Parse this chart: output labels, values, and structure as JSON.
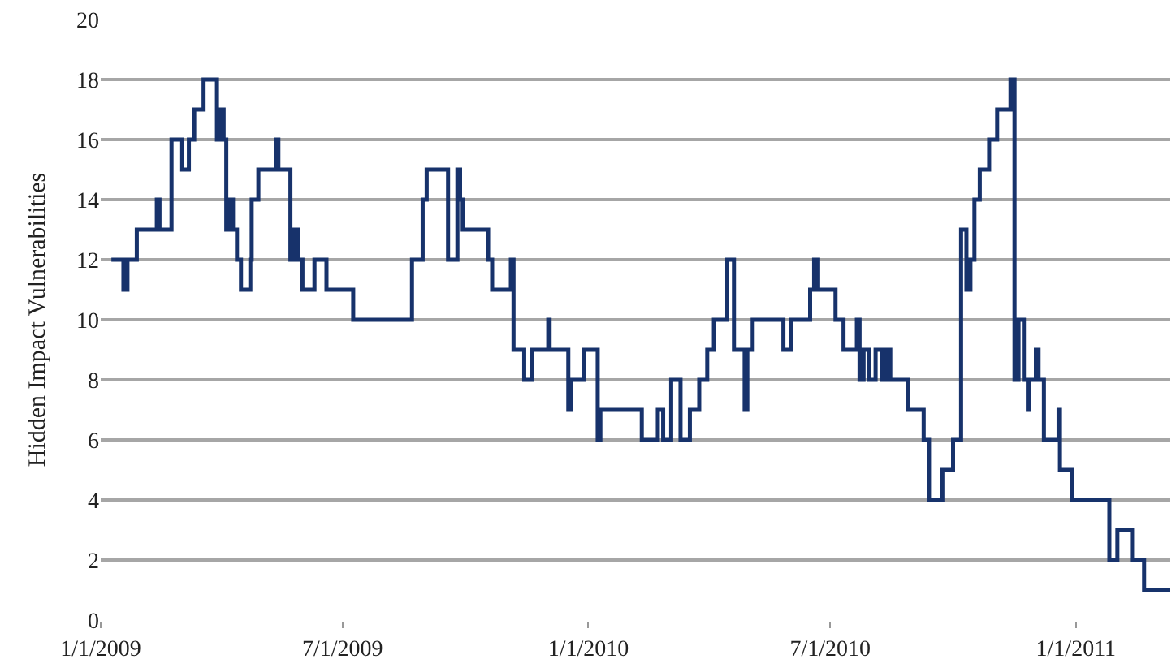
{
  "chart_data": {
    "type": "step",
    "ylabel": "Hidden Impact Vulnerabilities",
    "x": [
      "2009-01-09",
      "2009-01-18",
      "2009-01-21",
      "2009-01-28",
      "2009-02-12",
      "2009-02-14",
      "2009-02-23",
      "2009-03-03",
      "2009-03-08",
      "2009-03-12",
      "2009-03-19",
      "2009-03-29",
      "2009-04-01",
      "2009-04-03",
      "2009-04-05",
      "2009-04-08",
      "2009-04-10",
      "2009-04-13",
      "2009-04-16",
      "2009-04-23",
      "2009-04-24",
      "2009-04-29",
      "2009-05-12",
      "2009-05-14",
      "2009-05-23",
      "2009-05-26",
      "2009-05-29",
      "2009-06-01",
      "2009-06-10",
      "2009-06-19",
      "2009-07-09",
      "2009-08-22",
      "2009-08-30",
      "2009-09-02",
      "2009-09-18",
      "2009-09-25",
      "2009-09-27",
      "2009-09-29",
      "2009-10-18",
      "2009-10-21",
      "2009-11-04",
      "2009-11-06",
      "2009-11-14",
      "2009-11-20",
      "2009-12-02",
      "2009-12-03",
      "2009-12-17",
      "2009-12-19",
      "2009-12-29",
      "2010-01-08",
      "2010-01-10",
      "2010-02-10",
      "2010-02-22",
      "2010-02-26",
      "2010-03-04",
      "2010-03-11",
      "2010-03-18",
      "2010-03-25",
      "2010-03-31",
      "2010-04-05",
      "2010-04-15",
      "2010-04-20",
      "2010-04-28",
      "2010-04-30",
      "2010-05-04",
      "2010-05-27",
      "2010-06-02",
      "2010-06-16",
      "2010-06-19",
      "2010-06-22",
      "2010-07-05",
      "2010-07-11",
      "2010-07-21",
      "2010-07-23",
      "2010-07-26",
      "2010-07-30",
      "2010-08-04",
      "2010-08-09",
      "2010-08-12",
      "2010-08-15",
      "2010-08-28",
      "2010-09-09",
      "2010-09-13",
      "2010-09-23",
      "2010-10-01",
      "2010-10-07",
      "2010-10-11",
      "2010-10-14",
      "2010-10-17",
      "2010-10-21",
      "2010-10-28",
      "2010-11-03",
      "2010-11-13",
      "2010-11-16",
      "2010-11-19",
      "2010-11-23",
      "2010-11-26",
      "2010-11-27",
      "2010-12-02",
      "2010-12-04",
      "2010-12-08",
      "2010-12-19",
      "2010-12-20",
      "2010-12-29",
      "2011-01-26",
      "2011-02-01",
      "2011-02-12",
      "2011-02-21",
      "2011-03-12"
    ],
    "series": [
      {
        "color": "#17326b",
        "values": [
          12,
          11,
          12,
          13,
          14,
          13,
          16,
          15,
          16,
          17,
          18,
          16,
          17,
          16,
          13,
          14,
          13,
          12,
          11,
          12,
          14,
          15,
          16,
          15,
          12,
          13,
          12,
          11,
          12,
          11,
          10,
          12,
          14,
          15,
          12,
          15,
          14,
          13,
          12,
          11,
          12,
          9,
          8,
          9,
          10,
          9,
          7,
          8,
          9,
          6,
          7,
          6,
          7,
          6,
          8,
          6,
          7,
          8,
          9,
          10,
          12,
          9,
          7,
          9,
          10,
          9,
          10,
          11,
          12,
          11,
          10,
          9,
          10,
          8,
          9,
          8,
          9,
          8,
          9,
          8,
          7,
          6,
          4,
          5,
          6,
          13,
          11,
          12,
          14,
          15,
          16,
          17,
          18,
          8,
          10,
          8,
          7,
          8,
          9,
          8,
          6,
          7,
          5,
          4,
          2,
          3,
          2,
          1,
          1
        ]
      }
    ],
    "xlim": [
      "2009-01-01",
      "2011-03-12"
    ],
    "xticks": [
      {
        "value": "2009-01-01",
        "label": "1/1/2009"
      },
      {
        "value": "2009-07-01",
        "label": "7/1/2009"
      },
      {
        "value": "2010-01-01",
        "label": "1/1/2010"
      },
      {
        "value": "2010-07-01",
        "label": "7/1/2010"
      },
      {
        "value": "2011-01-01",
        "label": "1/1/2011"
      }
    ],
    "ylim": [
      0,
      20
    ],
    "yticks": [
      0,
      2,
      4,
      6,
      8,
      10,
      12,
      14,
      16,
      18,
      20
    ],
    "grid": "y"
  }
}
